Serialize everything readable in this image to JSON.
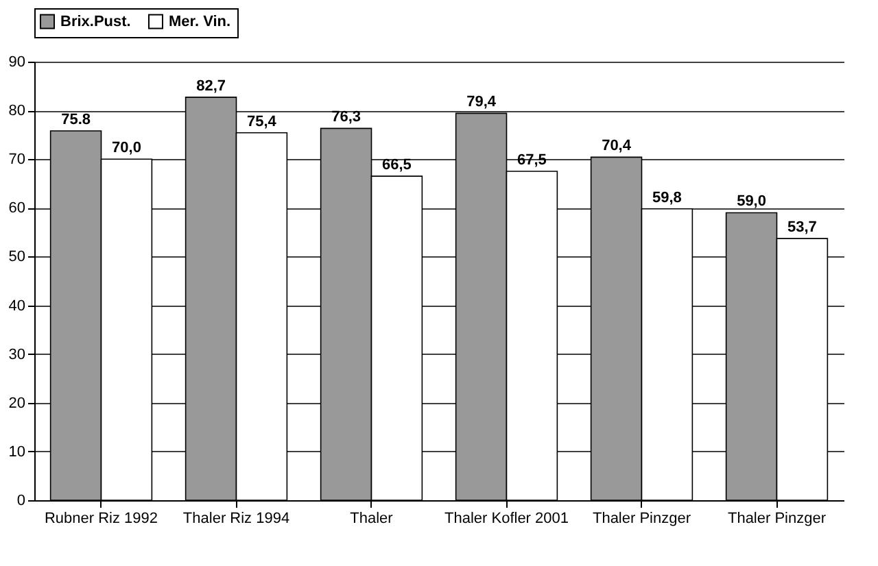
{
  "chart_data": {
    "type": "bar",
    "categories": [
      "Rubner Riz 1992",
      "Thaler Riz 1994",
      "Thaler",
      "Thaler Kofler 2001",
      "Thaler Pinzger",
      "Thaler Pinzger"
    ],
    "series": [
      {
        "name": "Brix.Pust.",
        "color": "#999999",
        "values": [
          75.8,
          82.7,
          76.3,
          79.4,
          70.4,
          59.0
        ],
        "value_labels": [
          "75.8",
          "82,7",
          "76,3",
          "79,4",
          "70,4",
          "59,0"
        ]
      },
      {
        "name": "Mer. Vin.",
        "color": "#ffffff",
        "values": [
          70.0,
          75.4,
          66.5,
          67.5,
          59.8,
          53.7
        ],
        "value_labels": [
          "70,0",
          "75,4",
          "66,5",
          "67,5",
          "59,8",
          "53,7"
        ]
      }
    ],
    "ylim": [
      0,
      90
    ],
    "yticks": [
      0,
      10,
      20,
      30,
      40,
      50,
      60,
      70,
      80,
      90
    ],
    "grid": "y",
    "legend": "top"
  }
}
